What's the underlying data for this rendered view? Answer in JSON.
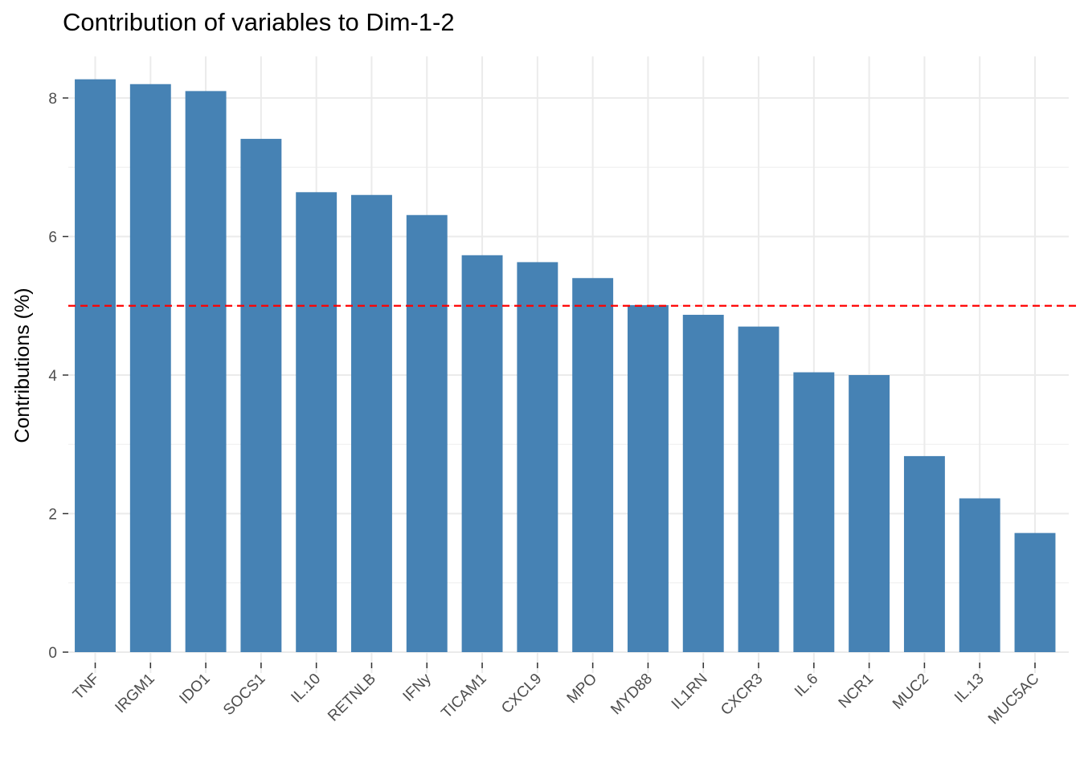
{
  "chart_data": {
    "type": "bar",
    "title": "Contribution of variables to Dim-1-2",
    "xlabel": "",
    "ylabel": "Contributions (%)",
    "categories": [
      "TNF",
      "IRGM1",
      "IDO1",
      "SOCS1",
      "IL.10",
      "RETNLB",
      "IFNy",
      "TICAM1",
      "CXCL9",
      "MPO",
      "MYD88",
      "IL1RN",
      "CXCR3",
      "IL.6",
      "NCR1",
      "MUC2",
      "IL.13",
      "MUC5AC"
    ],
    "values": [
      8.27,
      8.2,
      8.1,
      7.41,
      6.64,
      6.6,
      6.31,
      5.73,
      5.63,
      5.4,
      5.01,
      4.87,
      4.7,
      4.04,
      4.0,
      2.83,
      2.22,
      1.72
    ],
    "ylim": [
      0,
      8.6
    ],
    "yticks": [
      0,
      2,
      4,
      6,
      8
    ],
    "reference_line": {
      "value": 5,
      "style": "dashed",
      "color": "#ff0000"
    },
    "bar_color": "#4682b4",
    "grid": true
  }
}
